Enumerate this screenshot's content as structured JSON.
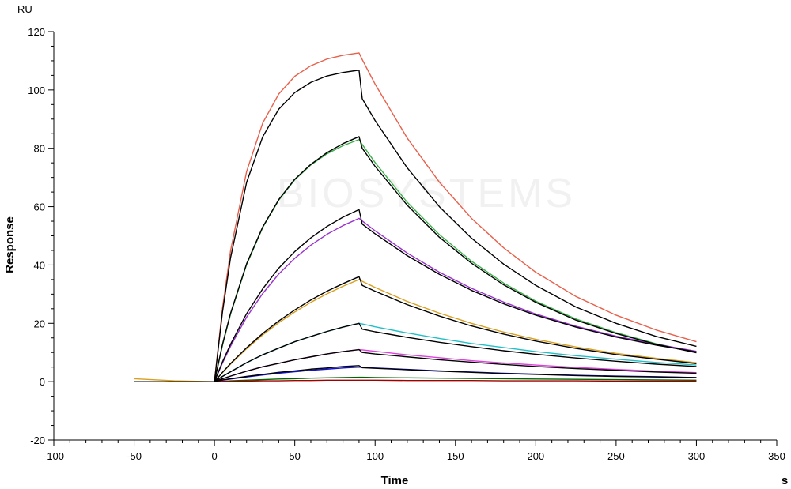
{
  "chart_data": {
    "type": "line",
    "unit_label": "RU",
    "y_label": "Response",
    "x_label": "Time",
    "x_unit": "s",
    "watermark": "BIOSYSTEMS",
    "xlim": [
      -100,
      350
    ],
    "ylim": [
      -20,
      120
    ],
    "xticks": [
      -100,
      -50,
      0,
      50,
      100,
      150,
      200,
      250,
      300,
      350
    ],
    "yticks": [
      -20,
      0,
      20,
      40,
      60,
      80,
      100,
      120
    ],
    "x": [
      -50,
      -25,
      0,
      5,
      10,
      20,
      30,
      40,
      50,
      60,
      70,
      80,
      90,
      92,
      100,
      120,
      140,
      160,
      180,
      200,
      225,
      250,
      275,
      300
    ],
    "series": [
      {
        "color": "#e8604c",
        "values": [
          0,
          0,
          0,
          25.2,
          44.8,
          72,
          88.6,
          98.6,
          104.7,
          108.3,
          110.6,
          111.9,
          112.7,
          110.4,
          102,
          83.5,
          68.4,
          56,
          45.9,
          37.5,
          29.2,
          22.8,
          17.7,
          13.7
        ]
      },
      {
        "color": "#3cb04a",
        "values": [
          0,
          0,
          0,
          12.4,
          23.1,
          40.1,
          52.8,
          62.2,
          69.2,
          74.3,
          78.1,
          80.9,
          83,
          81.3,
          75.1,
          61.5,
          50.4,
          41.3,
          33.8,
          27.6,
          21.5,
          16.8,
          13,
          10.1
        ]
      },
      {
        "color": "#9933cc",
        "values": [
          0,
          0,
          0,
          6.4,
          12.1,
          22.1,
          30.2,
          36.9,
          42.3,
          46.8,
          50.5,
          53.5,
          56,
          55.1,
          51.7,
          44.1,
          37.5,
          32,
          27.3,
          23.2,
          19,
          15.6,
          12.8,
          10.4
        ]
      },
      {
        "color": "#d9a020",
        "values": [
          1,
          0.3,
          0,
          3.1,
          6,
          11.3,
          16,
          20.2,
          23.9,
          27.2,
          30.1,
          32.7,
          35,
          34.4,
          32.3,
          27.5,
          23.5,
          20,
          17,
          14.5,
          11.9,
          9.7,
          8,
          6.5
        ]
      },
      {
        "color": "#20c0c8",
        "values": [
          0,
          0,
          0,
          1.8,
          3.4,
          6.5,
          9.2,
          11.5,
          13.7,
          15.5,
          17.2,
          18.7,
          20,
          19.8,
          18.8,
          16.7,
          14.8,
          13.1,
          11.7,
          10.3,
          8.9,
          7.7,
          6.6,
          5.7
        ]
      },
      {
        "color": "#e040e0",
        "values": [
          0,
          0,
          0,
          1,
          1.9,
          3.6,
          5.1,
          6.3,
          7.5,
          8.5,
          9.5,
          10.3,
          11,
          10.9,
          10.4,
          9.2,
          8.2,
          7.2,
          6.4,
          5.7,
          4.9,
          4.2,
          3.6,
          3.1
        ]
      },
      {
        "color": "#1010d0",
        "values": [
          0,
          0,
          0,
          0.5,
          0.9,
          1.6,
          2.3,
          2.9,
          3.4,
          3.9,
          4.3,
          4.7,
          5,
          4.9,
          4.7,
          4.2,
          3.7,
          3.3,
          2.9,
          2.6,
          2.2,
          1.9,
          1.7,
          1.4
        ]
      },
      {
        "color": "#006400",
        "values": [
          0,
          0,
          0,
          0.1,
          0.3,
          0.5,
          0.7,
          0.9,
          1,
          1.2,
          1.3,
          1.4,
          1.5,
          1.5,
          1.4,
          1.3,
          1.2,
          1.1,
          1,
          0.9,
          0.8,
          0.7,
          0.6,
          0.5
        ]
      },
      {
        "color": "#a00000",
        "values": [
          0,
          0,
          0,
          0.1,
          0.1,
          0.2,
          0.3,
          0.3,
          0.4,
          0.4,
          0.5,
          0.5,
          0.5,
          0.5,
          0.5,
          0.4,
          0.4,
          0.4,
          0.3,
          0.3,
          0.3,
          0.2,
          0.2,
          0.2
        ]
      },
      {
        "color": "#000000",
        "values": [
          0,
          0,
          0,
          23.9,
          42.4,
          68.3,
          83.9,
          93.4,
          99.1,
          102.6,
          104.8,
          106,
          106.8,
          97,
          89.5,
          73.3,
          60,
          49.2,
          40.3,
          33,
          25.6,
          20,
          15.5,
          12.1
        ]
      },
      {
        "color": "#000000",
        "values": [
          0,
          0,
          0,
          12.8,
          23.4,
          40.4,
          53,
          62.4,
          69.4,
          74.5,
          78.5,
          81.6,
          84,
          80,
          73.8,
          60.5,
          49.5,
          40.6,
          33.2,
          27.2,
          21.1,
          16.5,
          12.8,
          9.9
        ]
      },
      {
        "color": "#000000",
        "values": [
          0,
          0,
          0,
          6.8,
          12.8,
          23.3,
          31.8,
          38.9,
          44.6,
          49.3,
          53.2,
          56.4,
          59,
          54,
          50.7,
          43.2,
          36.8,
          31.3,
          26.7,
          22.8,
          18.7,
          15.3,
          12.5,
          10.2
        ]
      },
      {
        "color": "#000000",
        "values": [
          0,
          0,
          0,
          3.2,
          6.2,
          11.6,
          16.5,
          20.8,
          24.6,
          28,
          31,
          33.6,
          36,
          33,
          31,
          26.4,
          22.5,
          19.1,
          16.3,
          13.9,
          11.4,
          9.3,
          7.7,
          6.2
        ]
      },
      {
        "color": "#000000",
        "values": [
          0,
          0,
          0,
          1.8,
          3.4,
          6.5,
          9.2,
          11.5,
          13.7,
          15.5,
          17.2,
          18.7,
          20,
          18,
          17.1,
          15.2,
          13.5,
          12,
          10.6,
          9.4,
          8.1,
          7,
          6,
          5.2
        ]
      },
      {
        "color": "#000000",
        "values": [
          0,
          0,
          0,
          1,
          1.9,
          3.6,
          5.1,
          6.3,
          7.5,
          8.5,
          9.5,
          10.3,
          11,
          10,
          9.5,
          8.5,
          7.5,
          6.7,
          5.9,
          5.2,
          4.5,
          3.9,
          3.3,
          2.9
        ]
      },
      {
        "color": "#000000",
        "values": [
          0,
          0,
          0,
          0.6,
          1,
          1.8,
          2.5,
          3.2,
          3.7,
          4.3,
          4.7,
          5.2,
          5.5,
          4.8,
          4.6,
          4.1,
          3.6,
          3.2,
          2.8,
          2.5,
          2.1,
          1.8,
          1.6,
          1.4
        ]
      }
    ]
  }
}
